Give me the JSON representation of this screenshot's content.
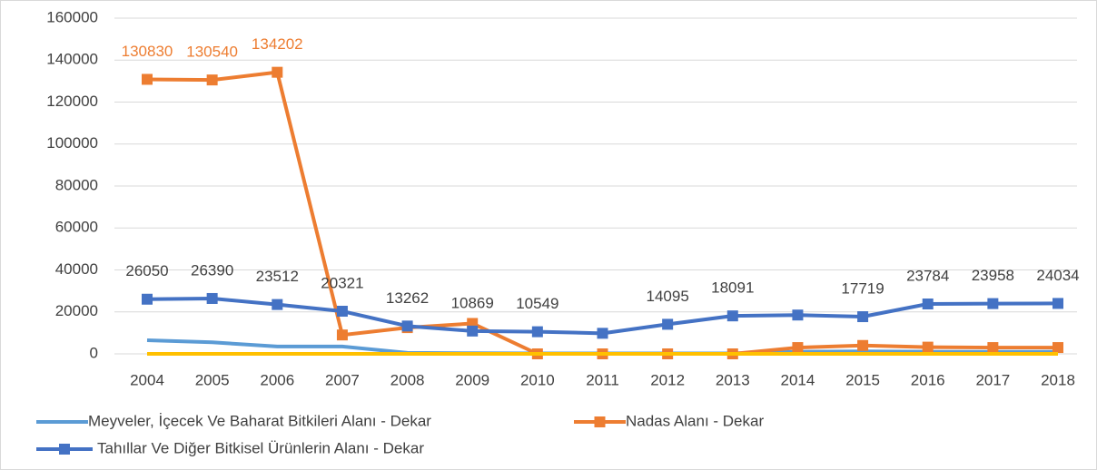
{
  "chart_data": {
    "type": "line",
    "x": [
      2004,
      2005,
      2006,
      2007,
      2008,
      2009,
      2010,
      2011,
      2012,
      2013,
      2014,
      2015,
      2016,
      2017,
      2018
    ],
    "xlim": [
      2004,
      2018
    ],
    "xticks": [
      2004,
      2005,
      2006,
      2007,
      2008,
      2009,
      2010,
      2011,
      2012,
      2013,
      2014,
      2015,
      2016,
      2017,
      2018
    ],
    "ylim": [
      0,
      160000
    ],
    "yticks": [
      0,
      20000,
      40000,
      60000,
      80000,
      100000,
      120000,
      140000,
      160000
    ],
    "grid": true,
    "legend": "bottom",
    "series": [
      {
        "name": "Meyveler, İçecek Ve Baharat Bitkileri Alanı - Dekar",
        "color": "#5b9bd5",
        "marker": "none",
        "values": [
          6500,
          5500,
          3500,
          3500,
          500,
          300,
          200,
          200,
          200,
          200,
          1000,
          1200,
          1000,
          1000,
          1000
        ]
      },
      {
        "name": "Nadas Alanı - Dekar",
        "color": "#ed7d31",
        "marker": "square",
        "values": [
          130830,
          130540,
          134202,
          9000,
          12500,
          14500,
          0,
          0,
          0,
          0,
          3000,
          4000,
          3200,
          3000,
          3000
        ],
        "value_labels": [
          130830,
          130540,
          134202,
          null,
          null,
          null,
          null,
          null,
          null,
          null,
          null,
          null,
          null,
          null,
          null
        ]
      },
      {
        "name": "Tahıllar Ve Diğer Bitkisel Ürünlerin Alanı - Dekar",
        "color": "#4472c4",
        "marker": "square",
        "values": [
          26050,
          26390,
          23512,
          20321,
          13262,
          10869,
          10549,
          9800,
          14095,
          18091,
          18500,
          17719,
          23784,
          23958,
          24034
        ],
        "value_labels": [
          26050,
          26390,
          23512,
          20321,
          13262,
          10869,
          10549,
          null,
          14095,
          18091,
          null,
          17719,
          23784,
          23958,
          24034
        ]
      },
      {
        "color": "#ffc000",
        "marker": "none",
        "values": [
          0,
          0,
          0,
          0,
          0,
          0,
          0,
          0,
          0,
          0,
          0,
          0,
          0,
          0,
          0
        ]
      }
    ]
  }
}
